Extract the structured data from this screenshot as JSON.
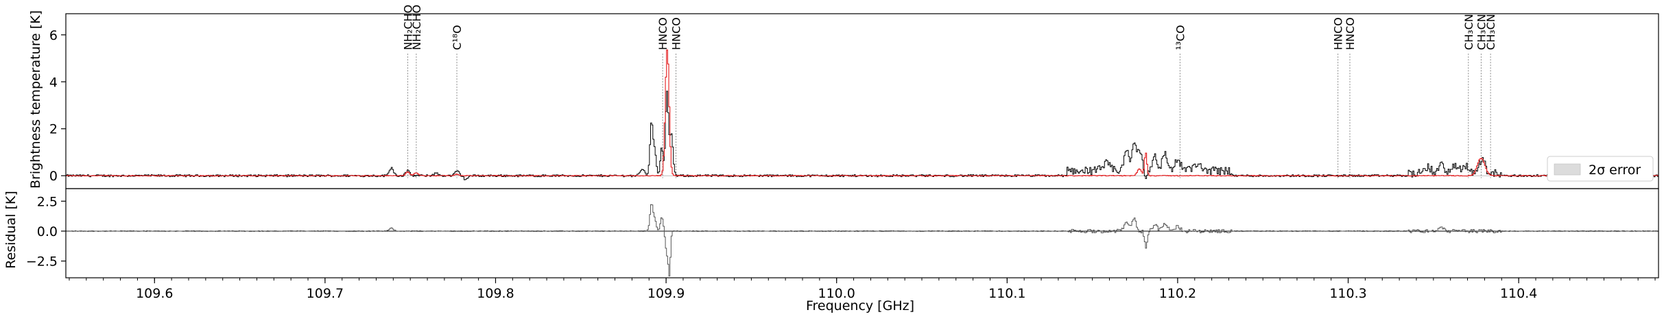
{
  "chart_data": [
    {
      "panel": "top",
      "type": "line",
      "ylabel": "Brightness temperature [K]",
      "ylim": [
        -0.55,
        6.9
      ],
      "xlim": [
        109.548,
        110.482
      ],
      "yticks": [
        0,
        2,
        4,
        6
      ],
      "ytick_labels": [
        "0",
        "2",
        "4",
        "6"
      ],
      "grid": false,
      "legend": {
        "position": "bottom-right",
        "entries": [
          {
            "name": "2σ error",
            "color": "#dcdcdc"
          }
        ]
      },
      "colors": {
        "observed": "#000000",
        "model": "#e41a1c",
        "line_marker": "#888888"
      },
      "line_labels": [
        {
          "x": 109.7485,
          "label": "NH₂CHO"
        },
        {
          "x": 109.7535,
          "label": "NH₂CHO"
        },
        {
          "x": 109.7773,
          "label": "C¹⁸O"
        },
        {
          "x": 109.898,
          "label": "HNCO"
        },
        {
          "x": 109.9058,
          "label": "HNCO"
        },
        {
          "x": 110.2014,
          "label": "¹³CO"
        },
        {
          "x": 110.294,
          "label": "HNCO"
        },
        {
          "x": 110.301,
          "label": "HNCO"
        },
        {
          "x": 110.3705,
          "label": "CH₃CN"
        },
        {
          "x": 110.378,
          "label": "CH₃CN"
        },
        {
          "x": 110.3835,
          "label": "CH₃CN"
        }
      ],
      "observed_features": [
        {
          "x": 109.739,
          "height": 0.35,
          "width": 0.0012,
          "shape": "gauss"
        },
        {
          "x": 109.7485,
          "height": 0.2,
          "width": 0.0012,
          "shape": "gauss"
        },
        {
          "x": 109.765,
          "height": 0.1,
          "width": 0.0015,
          "shape": "gauss"
        },
        {
          "x": 109.7775,
          "height": 0.2,
          "width": 0.0012,
          "shape": "gauss"
        },
        {
          "x": 109.7825,
          "height": -0.15,
          "width": 0.0012,
          "shape": "gauss"
        },
        {
          "x": 109.886,
          "height": 0.3,
          "width": 0.0012,
          "shape": "gauss"
        },
        {
          "x": 109.8915,
          "height": 2.3,
          "width": 0.0009,
          "shape": "gauss"
        },
        {
          "x": 109.8935,
          "height": 0.9,
          "width": 0.0008,
          "shape": "gauss"
        },
        {
          "x": 109.8975,
          "height": 1.2,
          "width": 0.0008,
          "shape": "gauss"
        },
        {
          "x": 109.9005,
          "height": 3.5,
          "width": 0.0008,
          "shape": "gauss"
        },
        {
          "x": 109.903,
          "height": 1.8,
          "width": 0.001,
          "shape": "gauss"
        },
        {
          "x": 110.135,
          "x2": 110.232,
          "height": 0.22,
          "shape": "band"
        },
        {
          "x": 110.158,
          "height": 0.3,
          "width": 0.002,
          "shape": "gauss"
        },
        {
          "x": 110.17,
          "height": 0.8,
          "width": 0.0015,
          "shape": "gauss"
        },
        {
          "x": 110.1745,
          "height": 1.2,
          "width": 0.0012,
          "shape": "gauss"
        },
        {
          "x": 110.178,
          "height": 0.9,
          "width": 0.0012,
          "shape": "gauss"
        },
        {
          "x": 110.1815,
          "height": -0.4,
          "width": 0.0008,
          "shape": "gauss"
        },
        {
          "x": 110.1865,
          "height": 0.6,
          "width": 0.0015,
          "shape": "gauss"
        },
        {
          "x": 110.1925,
          "height": 0.7,
          "width": 0.0015,
          "shape": "gauss"
        },
        {
          "x": 110.2,
          "height": 0.5,
          "width": 0.0015,
          "shape": "gauss"
        },
        {
          "x": 110.211,
          "height": 0.2,
          "width": 0.003,
          "shape": "gauss"
        },
        {
          "x": 110.335,
          "x2": 110.39,
          "height": 0.1,
          "shape": "band"
        },
        {
          "x": 110.347,
          "height": 0.3,
          "width": 0.0015,
          "shape": "gauss"
        },
        {
          "x": 110.355,
          "height": 0.45,
          "width": 0.0015,
          "shape": "gauss"
        },
        {
          "x": 110.363,
          "height": 0.3,
          "width": 0.002,
          "shape": "gauss"
        },
        {
          "x": 110.369,
          "height": 0.35,
          "width": 0.0015,
          "shape": "gauss"
        },
        {
          "x": 110.3785,
          "height": 0.6,
          "width": 0.0018,
          "shape": "gauss"
        }
      ],
      "model_features": [
        {
          "x": 109.7485,
          "height": 0.15,
          "width": 0.0012
        },
        {
          "x": 109.7535,
          "height": 0.12,
          "width": 0.0012
        },
        {
          "x": 109.7773,
          "height": 0.06,
          "width": 0.0012
        },
        {
          "x": 109.9007,
          "height": 5.4,
          "width": 0.0011
        },
        {
          "x": 110.1813,
          "height": 1.0,
          "width": 0.0007
        },
        {
          "x": 110.1775,
          "height": 0.3,
          "width": 0.0012
        },
        {
          "x": 110.378,
          "height": 0.75,
          "width": 0.0022
        }
      ]
    },
    {
      "panel": "bottom",
      "type": "line",
      "xlabel": "Frequency [GHz]",
      "ylabel": "Residual [K]",
      "ylim": [
        -3.9,
        3.55
      ],
      "xlim": [
        109.548,
        110.482
      ],
      "yticks": [
        2.5,
        0.0,
        -2.5
      ],
      "ytick_labels": [
        "2.5",
        "0.0",
        "−2.5"
      ],
      "xticks": [
        109.6,
        109.7,
        109.8,
        109.9,
        110.0,
        110.1,
        110.2,
        110.3,
        110.4
      ],
      "xtick_labels": [
        "109.6",
        "109.7",
        "109.8",
        "109.9",
        "110.0",
        "110.1",
        "110.2",
        "110.3",
        "110.4"
      ],
      "colors": {
        "residual": "#555555",
        "zero_line": "#000000"
      },
      "residual_features": [
        {
          "x": 109.739,
          "height": 0.25,
          "width": 0.0012
        },
        {
          "x": 109.8915,
          "height": 2.3,
          "width": 0.0009
        },
        {
          "x": 109.8935,
          "height": 0.9,
          "width": 0.0008
        },
        {
          "x": 109.8975,
          "height": 1.2,
          "width": 0.0008
        },
        {
          "x": 109.9005,
          "height": -1.9,
          "width": 0.0008
        },
        {
          "x": 109.902,
          "height": -3.4,
          "width": 0.0006
        },
        {
          "x": 110.17,
          "height": 0.7,
          "width": 0.0015
        },
        {
          "x": 110.1745,
          "height": 1.1,
          "width": 0.0012
        },
        {
          "x": 110.1815,
          "height": -1.3,
          "width": 0.0008
        },
        {
          "x": 110.1865,
          "height": 0.5,
          "width": 0.0015
        },
        {
          "x": 110.1925,
          "height": 0.6,
          "width": 0.0015
        },
        {
          "x": 110.2,
          "height": 0.4,
          "width": 0.0015
        },
        {
          "x": 110.355,
          "height": 0.3,
          "width": 0.0015
        }
      ]
    }
  ]
}
